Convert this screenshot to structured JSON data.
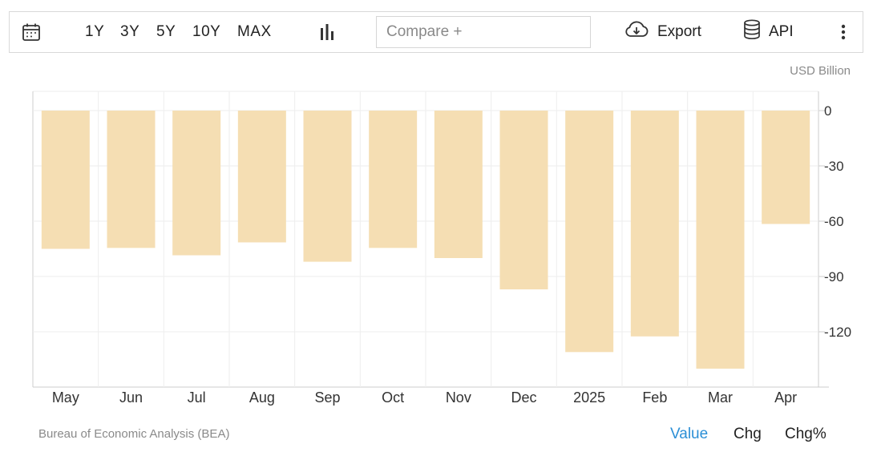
{
  "toolbar": {
    "ranges": [
      "1Y",
      "3Y",
      "5Y",
      "10Y",
      "MAX"
    ],
    "compare_placeholder": "Compare +",
    "export_label": "Export",
    "api_label": "API",
    "icons": {
      "calendar": "calendar-icon",
      "chart_type": "bar-chart-icon",
      "export": "cloud-download-icon",
      "api": "database-icon",
      "more": "more-vertical-icon"
    }
  },
  "units_label": "USD Billion",
  "source_label": "Bureau of Economic Analysis (BEA)",
  "mode_tabs": [
    {
      "label": "Value",
      "active": true
    },
    {
      "label": "Chg",
      "active": false
    },
    {
      "label": "Chg%",
      "active": false
    }
  ],
  "colors": {
    "bar": "#f5deb3",
    "active_tab": "#2b8fd6",
    "grid": "#eeeeee"
  },
  "chart_data": {
    "type": "bar",
    "categories": [
      "May",
      "Jun",
      "Jul",
      "Aug",
      "Sep",
      "Oct",
      "Nov",
      "Dec",
      "2025",
      "Feb",
      "Mar",
      "Apr"
    ],
    "values": [
      -75,
      -74.5,
      -78.5,
      -71.5,
      -82,
      -74.5,
      -80,
      -97,
      -131,
      -122.5,
      -140,
      -61.5
    ],
    "ylim": [
      -150,
      5
    ],
    "yticks": [
      0,
      -30,
      -60,
      -90,
      -120
    ],
    "ytick_labels": [
      "0",
      "-30",
      "-60",
      "-90",
      "-120"
    ],
    "y_axis_position": "right",
    "grid": true
  }
}
